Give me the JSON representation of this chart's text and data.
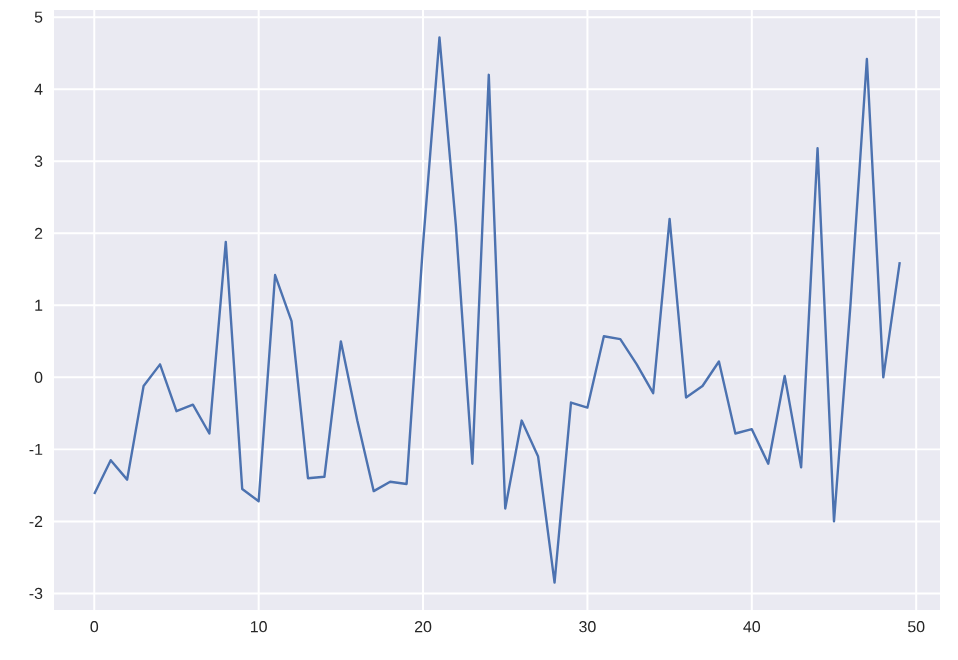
{
  "chart_data": {
    "type": "line",
    "x": [
      0,
      1,
      2,
      3,
      4,
      5,
      6,
      7,
      8,
      9,
      10,
      11,
      12,
      13,
      14,
      15,
      16,
      17,
      18,
      19,
      20,
      21,
      22,
      23,
      24,
      25,
      26,
      27,
      28,
      29,
      30,
      31,
      32,
      33,
      34,
      35,
      36,
      37,
      38,
      39,
      40,
      41,
      42,
      43,
      44,
      45,
      46,
      47,
      48,
      49
    ],
    "series": [
      {
        "color": "#4c72b0",
        "values": [
          -1.62,
          -1.15,
          -1.42,
          -0.12,
          0.18,
          -0.47,
          -0.38,
          -0.78,
          1.88,
          -1.55,
          -1.72,
          1.42,
          0.78,
          -1.4,
          -1.38,
          0.5,
          -0.6,
          -1.58,
          -1.45,
          -1.48,
          1.85,
          4.72,
          2.1,
          -1.2,
          4.2,
          -1.82,
          -0.6,
          -1.1,
          -2.85,
          -0.35,
          -0.42,
          0.57,
          0.53,
          0.18,
          -0.22,
          2.2,
          -0.28,
          -0.12,
          0.22,
          -0.78,
          -0.72,
          -1.2,
          0.02,
          -1.25,
          3.18,
          -2.0,
          1.0,
          4.42,
          0.0,
          1.6
        ]
      }
    ],
    "xlim": [
      -2.45,
      51.45
    ],
    "ylim": [
      -3.23,
      5.1
    ],
    "xticks": [
      0,
      10,
      20,
      30,
      40,
      50
    ],
    "yticks": [
      -3,
      -2,
      -1,
      0,
      1,
      2,
      3,
      4,
      5
    ],
    "grid": true
  }
}
